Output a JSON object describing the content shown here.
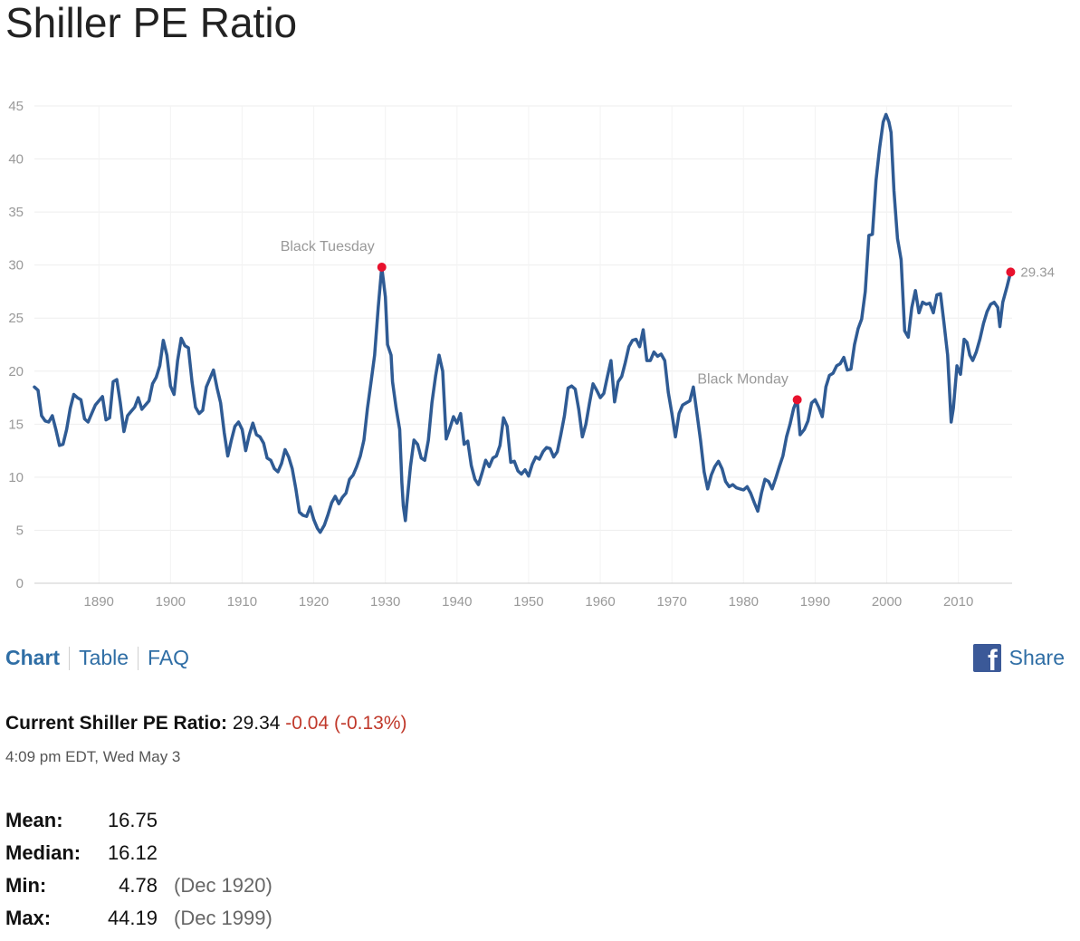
{
  "page": {
    "title": "Shiller PE Ratio"
  },
  "tabs": [
    {
      "label": "Chart",
      "active": true
    },
    {
      "label": "Table",
      "active": false
    },
    {
      "label": "FAQ",
      "active": false
    }
  ],
  "share": {
    "label": "Share",
    "icon": "facebook-icon"
  },
  "current": {
    "label": "Current Shiller PE Ratio:",
    "value": "29.34",
    "change": "-0.04 (-0.13%)",
    "timestamp": "4:09 pm EDT, Wed May 3"
  },
  "stats": {
    "mean": {
      "label": "Mean:",
      "value": "16.75",
      "date": ""
    },
    "median": {
      "label": "Median:",
      "value": "16.12",
      "date": ""
    },
    "min": {
      "label": "Min:",
      "value": "4.78",
      "date": "(Dec 1920)"
    },
    "max": {
      "label": "Max:",
      "value": "44.19",
      "date": "(Dec 1999)"
    }
  },
  "colors": {
    "line": "#2f5b94",
    "marker": "#e8112d",
    "link": "#2f6ea5",
    "negative": "#c0392b"
  },
  "chart_data": {
    "type": "line",
    "title": "",
    "xlabel": "",
    "ylabel": "",
    "xlim": [
      1881,
      2017.5
    ],
    "ylim": [
      0,
      45
    ],
    "grid": true,
    "x_ticks": [
      1890,
      1900,
      1910,
      1920,
      1930,
      1940,
      1950,
      1960,
      1970,
      1980,
      1990,
      2000,
      2010
    ],
    "y_ticks": [
      0,
      5,
      10,
      15,
      20,
      25,
      30,
      35,
      40,
      45
    ],
    "series": [
      {
        "name": "",
        "points": [
          [
            1881.0,
            18.5
          ],
          [
            1881.5,
            18.2
          ],
          [
            1882.0,
            15.8
          ],
          [
            1882.5,
            15.3
          ],
          [
            1883.0,
            15.2
          ],
          [
            1883.5,
            15.8
          ],
          [
            1884.0,
            14.5
          ],
          [
            1884.5,
            13.0
          ],
          [
            1885.0,
            13.1
          ],
          [
            1885.5,
            14.5
          ],
          [
            1886.0,
            16.5
          ],
          [
            1886.5,
            17.8
          ],
          [
            1887.0,
            17.5
          ],
          [
            1887.5,
            17.3
          ],
          [
            1888.0,
            15.5
          ],
          [
            1888.5,
            15.2
          ],
          [
            1889.0,
            16.0
          ],
          [
            1889.5,
            16.8
          ],
          [
            1890.0,
            17.2
          ],
          [
            1890.5,
            17.6
          ],
          [
            1891.0,
            15.4
          ],
          [
            1891.5,
            15.6
          ],
          [
            1892.0,
            19.0
          ],
          [
            1892.5,
            19.2
          ],
          [
            1893.0,
            17.0
          ],
          [
            1893.5,
            14.3
          ],
          [
            1894.0,
            15.8
          ],
          [
            1894.5,
            16.2
          ],
          [
            1895.0,
            16.6
          ],
          [
            1895.5,
            17.5
          ],
          [
            1896.0,
            16.4
          ],
          [
            1896.5,
            16.8
          ],
          [
            1897.0,
            17.2
          ],
          [
            1897.5,
            18.8
          ],
          [
            1898.0,
            19.4
          ],
          [
            1898.5,
            20.5
          ],
          [
            1899.0,
            22.9
          ],
          [
            1899.5,
            21.5
          ],
          [
            1900.0,
            18.6
          ],
          [
            1900.5,
            17.8
          ],
          [
            1901.0,
            21.0
          ],
          [
            1901.5,
            23.1
          ],
          [
            1902.0,
            22.4
          ],
          [
            1902.5,
            22.2
          ],
          [
            1903.0,
            19.0
          ],
          [
            1903.5,
            16.6
          ],
          [
            1904.0,
            16.0
          ],
          [
            1904.5,
            16.3
          ],
          [
            1905.0,
            18.5
          ],
          [
            1905.5,
            19.3
          ],
          [
            1906.0,
            20.1
          ],
          [
            1906.5,
            18.4
          ],
          [
            1907.0,
            17.0
          ],
          [
            1907.5,
            14.2
          ],
          [
            1908.0,
            12.0
          ],
          [
            1908.5,
            13.5
          ],
          [
            1909.0,
            14.8
          ],
          [
            1909.5,
            15.2
          ],
          [
            1910.0,
            14.5
          ],
          [
            1910.5,
            12.5
          ],
          [
            1911.0,
            14.0
          ],
          [
            1911.5,
            15.1
          ],
          [
            1912.0,
            14.0
          ],
          [
            1912.5,
            13.8
          ],
          [
            1913.0,
            13.2
          ],
          [
            1913.5,
            11.8
          ],
          [
            1914.0,
            11.6
          ],
          [
            1914.5,
            10.8
          ],
          [
            1915.0,
            10.5
          ],
          [
            1915.5,
            11.3
          ],
          [
            1916.0,
            12.6
          ],
          [
            1916.5,
            11.9
          ],
          [
            1917.0,
            10.8
          ],
          [
            1917.5,
            8.9
          ],
          [
            1918.0,
            6.7
          ],
          [
            1918.5,
            6.4
          ],
          [
            1919.0,
            6.3
          ],
          [
            1919.5,
            7.2
          ],
          [
            1920.0,
            6.0
          ],
          [
            1920.5,
            5.2
          ],
          [
            1920.9,
            4.8
          ],
          [
            1921.5,
            5.5
          ],
          [
            1922.0,
            6.5
          ],
          [
            1922.5,
            7.6
          ],
          [
            1923.0,
            8.2
          ],
          [
            1923.5,
            7.5
          ],
          [
            1924.0,
            8.1
          ],
          [
            1924.5,
            8.5
          ],
          [
            1925.0,
            9.8
          ],
          [
            1925.5,
            10.2
          ],
          [
            1926.0,
            11.0
          ],
          [
            1926.5,
            12.0
          ],
          [
            1927.0,
            13.5
          ],
          [
            1927.5,
            16.5
          ],
          [
            1928.0,
            19.0
          ],
          [
            1928.5,
            21.5
          ],
          [
            1929.0,
            26.0
          ],
          [
            1929.5,
            29.8
          ],
          [
            1930.0,
            27.0
          ],
          [
            1930.3,
            22.5
          ],
          [
            1930.8,
            21.5
          ],
          [
            1931.0,
            19.0
          ],
          [
            1931.5,
            16.5
          ],
          [
            1932.0,
            14.5
          ],
          [
            1932.3,
            9.5
          ],
          [
            1932.5,
            7.3
          ],
          [
            1932.8,
            5.9
          ],
          [
            1933.0,
            7.5
          ],
          [
            1933.5,
            11.0
          ],
          [
            1934.0,
            13.5
          ],
          [
            1934.5,
            13.1
          ],
          [
            1935.0,
            11.8
          ],
          [
            1935.5,
            11.6
          ],
          [
            1936.0,
            13.5
          ],
          [
            1936.5,
            17.0
          ],
          [
            1937.0,
            19.5
          ],
          [
            1937.5,
            21.5
          ],
          [
            1938.0,
            20.0
          ],
          [
            1938.5,
            13.6
          ],
          [
            1939.0,
            14.6
          ],
          [
            1939.5,
            15.7
          ],
          [
            1940.0,
            15.1
          ],
          [
            1940.5,
            16.0
          ],
          [
            1941.0,
            13.1
          ],
          [
            1941.5,
            13.4
          ],
          [
            1942.0,
            11.1
          ],
          [
            1942.5,
            9.8
          ],
          [
            1943.0,
            9.3
          ],
          [
            1943.5,
            10.4
          ],
          [
            1944.0,
            11.6
          ],
          [
            1944.5,
            11.0
          ],
          [
            1945.0,
            11.8
          ],
          [
            1945.5,
            12.0
          ],
          [
            1946.0,
            13.0
          ],
          [
            1946.5,
            15.6
          ],
          [
            1947.0,
            14.8
          ],
          [
            1947.5,
            11.4
          ],
          [
            1948.0,
            11.5
          ],
          [
            1948.5,
            10.6
          ],
          [
            1949.0,
            10.3
          ],
          [
            1949.5,
            10.7
          ],
          [
            1950.0,
            10.1
          ],
          [
            1950.5,
            11.2
          ],
          [
            1951.0,
            11.9
          ],
          [
            1951.5,
            11.7
          ],
          [
            1952.0,
            12.4
          ],
          [
            1952.5,
            12.8
          ],
          [
            1953.0,
            12.7
          ],
          [
            1953.5,
            11.9
          ],
          [
            1954.0,
            12.4
          ],
          [
            1954.5,
            14.0
          ],
          [
            1955.0,
            15.8
          ],
          [
            1955.5,
            18.4
          ],
          [
            1956.0,
            18.6
          ],
          [
            1956.5,
            18.3
          ],
          [
            1957.0,
            16.4
          ],
          [
            1957.5,
            13.8
          ],
          [
            1958.0,
            15.0
          ],
          [
            1958.5,
            17.0
          ],
          [
            1959.0,
            18.8
          ],
          [
            1959.5,
            18.2
          ],
          [
            1960.0,
            17.5
          ],
          [
            1960.5,
            17.9
          ],
          [
            1961.0,
            19.5
          ],
          [
            1961.5,
            21.0
          ],
          [
            1962.0,
            17.1
          ],
          [
            1962.5,
            19.0
          ],
          [
            1963.0,
            19.5
          ],
          [
            1963.5,
            20.8
          ],
          [
            1964.0,
            22.3
          ],
          [
            1964.5,
            22.9
          ],
          [
            1965.0,
            23.0
          ],
          [
            1965.5,
            22.3
          ],
          [
            1966.0,
            23.9
          ],
          [
            1966.5,
            21.0
          ],
          [
            1967.0,
            21.0
          ],
          [
            1967.5,
            21.8
          ],
          [
            1968.0,
            21.4
          ],
          [
            1968.5,
            21.6
          ],
          [
            1969.0,
            21.0
          ],
          [
            1969.5,
            18.0
          ],
          [
            1970.0,
            16.0
          ],
          [
            1970.5,
            13.8
          ],
          [
            1971.0,
            16.0
          ],
          [
            1971.5,
            16.8
          ],
          [
            1972.0,
            17.0
          ],
          [
            1972.5,
            17.2
          ],
          [
            1973.0,
            18.5
          ],
          [
            1973.5,
            16.0
          ],
          [
            1974.0,
            13.5
          ],
          [
            1974.5,
            10.5
          ],
          [
            1975.0,
            8.9
          ],
          [
            1975.5,
            10.2
          ],
          [
            1976.0,
            11.0
          ],
          [
            1976.5,
            11.5
          ],
          [
            1977.0,
            10.8
          ],
          [
            1977.5,
            9.6
          ],
          [
            1978.0,
            9.1
          ],
          [
            1978.5,
            9.3
          ],
          [
            1979.0,
            9.0
          ],
          [
            1979.5,
            8.9
          ],
          [
            1980.0,
            8.8
          ],
          [
            1980.5,
            9.1
          ],
          [
            1981.0,
            8.5
          ],
          [
            1981.5,
            7.6
          ],
          [
            1982.0,
            6.8
          ],
          [
            1982.5,
            8.5
          ],
          [
            1983.0,
            9.8
          ],
          [
            1983.5,
            9.6
          ],
          [
            1984.0,
            8.9
          ],
          [
            1984.5,
            9.9
          ],
          [
            1985.0,
            11.0
          ],
          [
            1985.5,
            12.0
          ],
          [
            1986.0,
            13.8
          ],
          [
            1986.5,
            15.0
          ],
          [
            1987.0,
            16.5
          ],
          [
            1987.5,
            17.3
          ],
          [
            1987.9,
            14.0
          ],
          [
            1988.5,
            14.5
          ],
          [
            1989.0,
            15.3
          ],
          [
            1989.5,
            17.0
          ],
          [
            1990.0,
            17.3
          ],
          [
            1990.5,
            16.6
          ],
          [
            1991.0,
            15.7
          ],
          [
            1991.5,
            18.5
          ],
          [
            1992.0,
            19.6
          ],
          [
            1992.5,
            19.8
          ],
          [
            1993.0,
            20.5
          ],
          [
            1993.5,
            20.7
          ],
          [
            1994.0,
            21.3
          ],
          [
            1994.5,
            20.1
          ],
          [
            1995.0,
            20.2
          ],
          [
            1995.5,
            22.5
          ],
          [
            1996.0,
            24.0
          ],
          [
            1996.5,
            24.9
          ],
          [
            1997.0,
            27.5
          ],
          [
            1997.5,
            32.8
          ],
          [
            1998.0,
            32.9
          ],
          [
            1998.5,
            38.0
          ],
          [
            1999.0,
            41.0
          ],
          [
            1999.5,
            43.5
          ],
          [
            1999.9,
            44.2
          ],
          [
            2000.3,
            43.5
          ],
          [
            2000.6,
            42.5
          ],
          [
            2001.0,
            37.0
          ],
          [
            2001.5,
            32.5
          ],
          [
            2002.0,
            30.5
          ],
          [
            2002.5,
            23.8
          ],
          [
            2003.0,
            23.2
          ],
          [
            2003.5,
            26.0
          ],
          [
            2004.0,
            27.6
          ],
          [
            2004.5,
            25.5
          ],
          [
            2005.0,
            26.5
          ],
          [
            2005.5,
            26.3
          ],
          [
            2006.0,
            26.4
          ],
          [
            2006.5,
            25.5
          ],
          [
            2007.0,
            27.2
          ],
          [
            2007.5,
            27.3
          ],
          [
            2008.0,
            24.5
          ],
          [
            2008.5,
            21.5
          ],
          [
            2009.0,
            15.2
          ],
          [
            2009.3,
            16.5
          ],
          [
            2009.8,
            20.5
          ],
          [
            2010.3,
            19.7
          ],
          [
            2010.8,
            23.0
          ],
          [
            2011.2,
            22.7
          ],
          [
            2011.6,
            21.5
          ],
          [
            2012.0,
            21.0
          ],
          [
            2012.5,
            21.8
          ],
          [
            2013.0,
            23.0
          ],
          [
            2013.5,
            24.5
          ],
          [
            2014.0,
            25.6
          ],
          [
            2014.5,
            26.3
          ],
          [
            2015.0,
            26.5
          ],
          [
            2015.5,
            26.0
          ],
          [
            2015.8,
            24.2
          ],
          [
            2016.2,
            26.5
          ],
          [
            2016.8,
            28.0
          ],
          [
            2017.3,
            29.34
          ]
        ]
      }
    ],
    "annotations": [
      {
        "label": "Black Tuesday",
        "x": 1929.5,
        "y": 29.8
      },
      {
        "label": "Black Monday",
        "x": 1987.5,
        "y": 17.3
      },
      {
        "label": "29.34",
        "x": 2017.3,
        "y": 29.34
      }
    ]
  }
}
